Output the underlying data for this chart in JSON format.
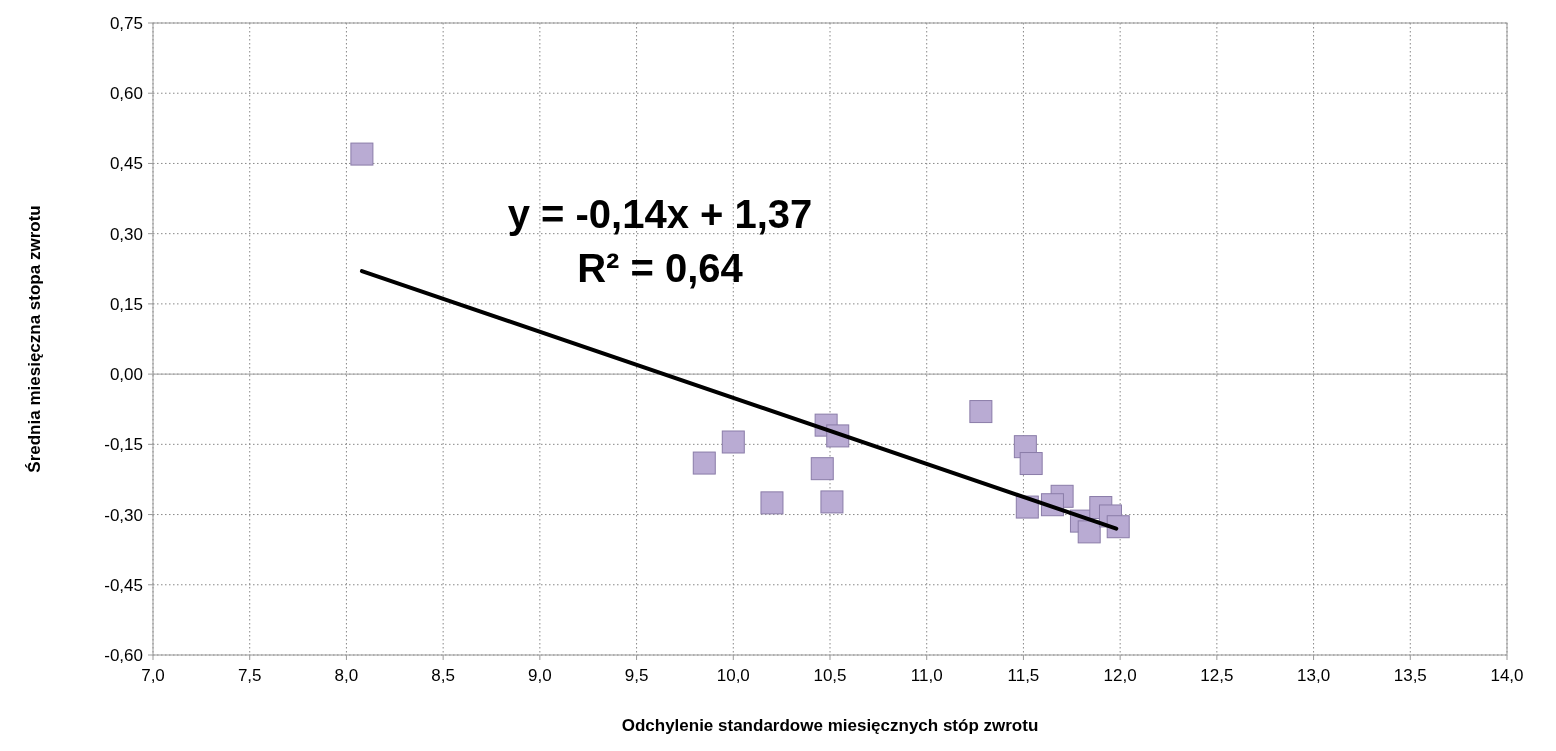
{
  "chart_data": {
    "type": "scatter",
    "xlabel": "Odchylenie standardowe miesięcznych stóp zwrotu",
    "ylabel": "Średnia miesięczna stopa zwrotu",
    "xlim": [
      7,
      14
    ],
    "ylim": [
      -0.6,
      0.75
    ],
    "xticks": [
      {
        "value": 7,
        "label": "7,0"
      },
      {
        "value": 7.5,
        "label": "7,5"
      },
      {
        "value": 8,
        "label": "8,0"
      },
      {
        "value": 8.5,
        "label": "8,5"
      },
      {
        "value": 9,
        "label": "9,0"
      },
      {
        "value": 9.5,
        "label": "9,5"
      },
      {
        "value": 10,
        "label": "10,0"
      },
      {
        "value": 10.5,
        "label": "10,5"
      },
      {
        "value": 11,
        "label": "11,0"
      },
      {
        "value": 11.5,
        "label": "11,5"
      },
      {
        "value": 12,
        "label": "12,0"
      },
      {
        "value": 12.5,
        "label": "12,5"
      },
      {
        "value": 13,
        "label": "13,0"
      },
      {
        "value": 13.5,
        "label": "13,5"
      },
      {
        "value": 14,
        "label": "14,0"
      }
    ],
    "yticks": [
      {
        "value": -0.6,
        "label": "-0,60"
      },
      {
        "value": -0.45,
        "label": "-0,45"
      },
      {
        "value": -0.3,
        "label": "-0,30"
      },
      {
        "value": -0.15,
        "label": "-0,15"
      },
      {
        "value": 0,
        "label": "0,00"
      },
      {
        "value": 0.15,
        "label": "0,15"
      },
      {
        "value": 0.3,
        "label": "0,30"
      },
      {
        "value": 0.45,
        "label": "0,45"
      },
      {
        "value": 0.6,
        "label": "0,60"
      },
      {
        "value": 0.75,
        "label": "0,75"
      }
    ],
    "grid": true,
    "ref_lines": [
      {
        "axis": "y",
        "value": 0,
        "color": "#a0a0a0"
      }
    ],
    "annotations": [
      "y = -0,14x + 1,37",
      "R² = 0,64"
    ],
    "series": [
      {
        "color": "#b9abd3",
        "marker": "square",
        "x": [
          8.08,
          9.85,
          10.0,
          10.2,
          10.48,
          10.54,
          10.46,
          10.51,
          11.28,
          11.51,
          11.54,
          11.52,
          11.7,
          11.65,
          11.8,
          11.84,
          11.9,
          11.95,
          11.99
        ],
        "values": [
          0.47,
          -0.19,
          -0.145,
          -0.275,
          -0.109,
          -0.132,
          -0.202,
          -0.273,
          -0.08,
          -0.155,
          -0.191,
          -0.284,
          -0.261,
          -0.279,
          -0.314,
          -0.337,
          -0.285,
          -0.303,
          -0.326
        ]
      },
      {
        "type": "line",
        "color": "#000000",
        "marker": "none",
        "x": [
          8.08,
          11.98
        ],
        "values": [
          0.22,
          -0.33
        ]
      }
    ]
  }
}
